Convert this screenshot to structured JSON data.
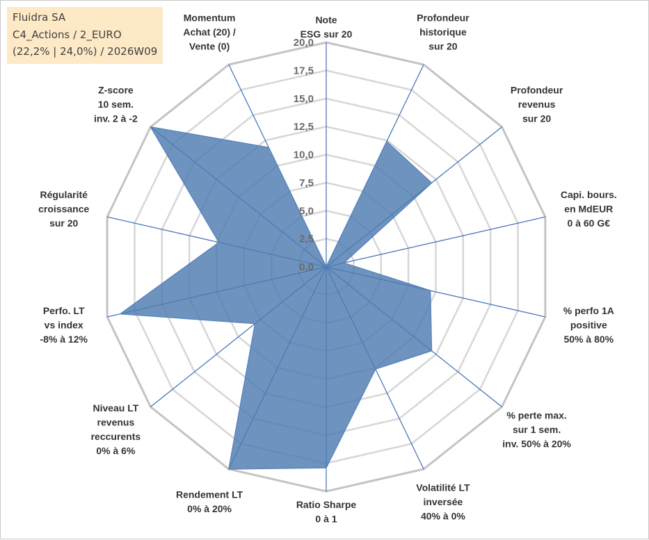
{
  "info_box": {
    "line1": "Fluidra SA",
    "line2": "C4_Actions / 2_EURO",
    "line3": "(22,2% | 24,0%) / 2026W09"
  },
  "colors": {
    "series_fill": "#4e7bb0",
    "series_stroke": "#5b86bb",
    "spoke": "#3d6db5",
    "outer_grid": "#c3c3c3",
    "inner_grid": "#d6d6d6",
    "info_box_bg": "#fde9c5"
  },
  "chart_data": {
    "type": "radar",
    "title": "",
    "rmin": 0,
    "rmax": 20,
    "ticks": [
      "0,0",
      "2,5",
      "5,0",
      "7,5",
      "10,0",
      "12,5",
      "15,0",
      "17,5",
      "20,0"
    ],
    "tick_values": [
      0,
      2.5,
      5,
      7.5,
      10,
      12.5,
      15,
      17.5,
      20
    ],
    "categories": [
      {
        "lines": [
          "Note",
          "ESG sur 20"
        ]
      },
      {
        "lines": [
          "Profondeur",
          "historique",
          "sur 20"
        ]
      },
      {
        "lines": [
          "Profondeur",
          "revenus",
          "sur 20"
        ]
      },
      {
        "lines": [
          "Capi. bours.",
          "en MdEUR",
          "0 à 60 G€"
        ]
      },
      {
        "lines": [
          "% perfo 1A",
          "positive",
          "50% à 80%"
        ]
      },
      {
        "lines": [
          "% perte max.",
          "sur 1 sem.",
          "inv. 50% à 20%"
        ]
      },
      {
        "lines": [
          "Volatilité LT",
          "inversée",
          "40% à 0%"
        ]
      },
      {
        "lines": [
          "Ratio Sharpe",
          "0 à 1"
        ]
      },
      {
        "lines": [
          "Rendement LT",
          "0% à 20%"
        ]
      },
      {
        "lines": [
          "Niveau LT",
          "revenus",
          "reccurents",
          "0% à 6%"
        ]
      },
      {
        "lines": [
          "Perfo. LT",
          "vs index",
          "-8% à 12%"
        ]
      },
      {
        "lines": [
          "Régularité",
          "croissance",
          "sur 20"
        ]
      },
      {
        "lines": [
          "Z-score",
          "10 sem.",
          "inv. 2 à -2"
        ]
      },
      {
        "lines": [
          "Momentum",
          "Achat (20) /",
          "Vente (0)"
        ]
      }
    ],
    "series": [
      {
        "name": "Fluidra SA",
        "values": [
          0,
          12.4,
          12.0,
          1.6,
          9.5,
          12.0,
          10.1,
          17.9,
          20.0,
          8.1,
          18.8,
          9.8,
          20.0,
          11.8
        ]
      }
    ]
  }
}
